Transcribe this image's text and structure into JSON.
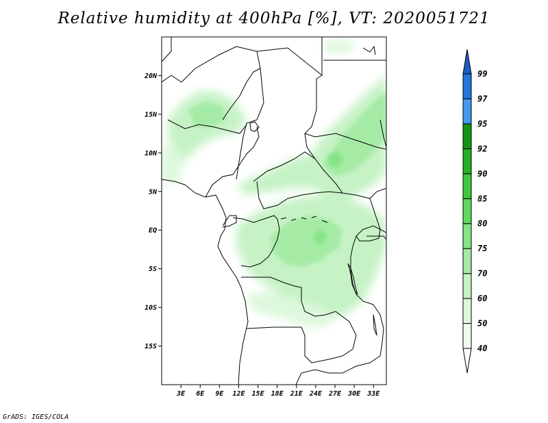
{
  "title": "Relative humidity at 400hPa [%], VT: 2020051721",
  "credit": "GrADS: IGES/COLA",
  "map": {
    "lat_labels": [
      {
        "lat": 20,
        "label": "20N"
      },
      {
        "lat": 15,
        "label": "15N"
      },
      {
        "lat": 10,
        "label": "10N"
      },
      {
        "lat": 5,
        "label": "5N"
      },
      {
        "lat": 0,
        "label": "EQ"
      },
      {
        "lat": -5,
        "label": "5S"
      },
      {
        "lat": -10,
        "label": "10S"
      },
      {
        "lat": -15,
        "label": "15S"
      }
    ],
    "lon_labels": [
      {
        "lon": 3,
        "label": "3E"
      },
      {
        "lon": 6,
        "label": "6E"
      },
      {
        "lon": 9,
        "label": "9E"
      },
      {
        "lon": 12,
        "label": "12E"
      },
      {
        "lon": 15,
        "label": "15E"
      },
      {
        "lon": 18,
        "label": "18E"
      },
      {
        "lon": 21,
        "label": "21E"
      },
      {
        "lon": 24,
        "label": "24E"
      },
      {
        "lon": 27,
        "label": "27E"
      },
      {
        "lon": 30,
        "label": "30E"
      },
      {
        "lon": 33,
        "label": "33E"
      }
    ],
    "lon_range": [
      0,
      35
    ],
    "lat_range": [
      -20,
      25
    ]
  },
  "colorbar": {
    "levels": [
      {
        "label": "40",
        "color": "#f0fcf0"
      },
      {
        "label": "50",
        "color": "#dcf8dc"
      },
      {
        "label": "60",
        "color": "#c3f2c3"
      },
      {
        "label": "70",
        "color": "#a5eba5"
      },
      {
        "label": "75",
        "color": "#85e485"
      },
      {
        "label": "80",
        "color": "#5fd95f"
      },
      {
        "label": "85",
        "color": "#3ec83e"
      },
      {
        "label": "90",
        "color": "#26b026"
      },
      {
        "label": "92",
        "color": "#149414"
      },
      {
        "label": "95",
        "color": "#4499ee"
      },
      {
        "label": "97",
        "color": "#2277dd"
      },
      {
        "label": "99",
        "color": "#1a5fc4"
      }
    ],
    "top_arrow_color": "#1a5fc4",
    "bottom_arrow_color": "#ffffff"
  }
}
